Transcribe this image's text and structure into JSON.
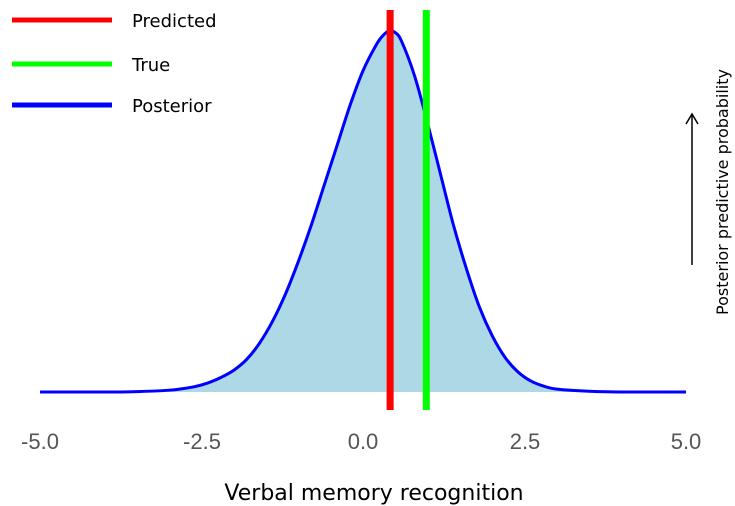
{
  "chart_data": {
    "type": "area",
    "xlabel": "Verbal memory recognition",
    "ylabel": "Posterior predictive probability",
    "xlim": [
      -5.0,
      5.0
    ],
    "ylim": [
      0,
      1
    ],
    "x_ticks": [
      "-5.0",
      "-2.5",
      "0.0",
      "2.5",
      "5.0"
    ],
    "grid": false,
    "legend_position": "top-left",
    "posterior": {
      "name": "Posterior",
      "color": "#0000ff",
      "fill_color": "#add8e6",
      "x": [
        -5.0,
        -4.5,
        -4.0,
        -3.5,
        -3.0,
        -2.8,
        -2.6,
        -2.4,
        -2.2,
        -2.0,
        -1.8,
        -1.6,
        -1.4,
        -1.2,
        -1.0,
        -0.8,
        -0.6,
        -0.4,
        -0.2,
        0.0,
        0.2,
        0.3,
        0.4,
        0.5,
        0.6,
        0.8,
        1.0,
        1.2,
        1.4,
        1.6,
        1.8,
        2.0,
        2.2,
        2.4,
        2.6,
        2.8,
        3.0,
        3.5,
        4.0,
        4.5,
        5.0
      ],
      "y": [
        0.0,
        0.0,
        0.0,
        0.001,
        0.005,
        0.009,
        0.015,
        0.025,
        0.04,
        0.06,
        0.09,
        0.135,
        0.195,
        0.27,
        0.36,
        0.46,
        0.57,
        0.68,
        0.79,
        0.885,
        0.955,
        0.98,
        0.995,
        0.99,
        0.965,
        0.87,
        0.74,
        0.6,
        0.46,
        0.34,
        0.235,
        0.155,
        0.095,
        0.055,
        0.03,
        0.016,
        0.008,
        0.002,
        0.0,
        0.0,
        0.0
      ]
    },
    "vlines": [
      {
        "name": "Predicted",
        "x": 0.42,
        "color": "#ff0000"
      },
      {
        "name": "True",
        "x": 0.98,
        "color": "#00ff00"
      }
    ],
    "legend": [
      {
        "label": "Predicted",
        "color": "#ff0000"
      },
      {
        "label": "True",
        "color": "#00ff00"
      },
      {
        "label": "Posterior",
        "color": "#0000ff"
      }
    ]
  }
}
